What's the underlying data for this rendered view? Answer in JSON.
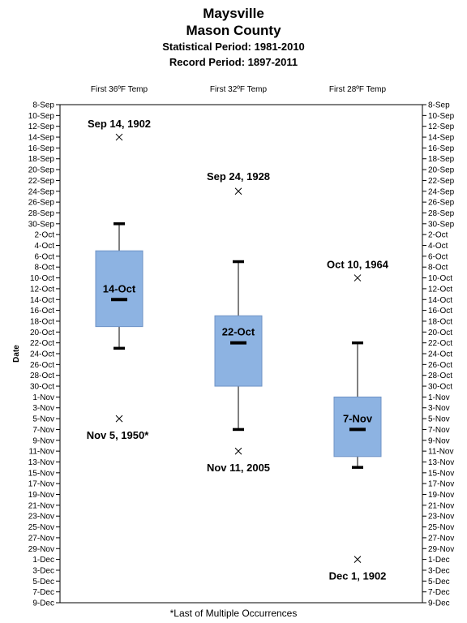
{
  "header": {
    "title_line1": "Maysville",
    "title_line2": "Mason County",
    "statistical_period": "Statistical Period: 1981-2010",
    "record_period": "Record Period: 1897-2011"
  },
  "footnote": "*Last of Multiple Occurrences",
  "colors": {
    "box_fill": "#8db3e2",
    "box_edge": "#6f93c6",
    "median": "#000000",
    "whisker_cap": "#000000"
  },
  "chart_data": {
    "type": "box",
    "ylabel": "Date",
    "y_axis": {
      "start": "8-Sep",
      "end": "9-Dec",
      "reversed": true,
      "grid": false,
      "tick_labels": [
        "8-Sep",
        "10-Sep",
        "12-Sep",
        "14-Sep",
        "16-Sep",
        "18-Sep",
        "20-Sep",
        "22-Sep",
        "24-Sep",
        "26-Sep",
        "28-Sep",
        "30-Sep",
        "2-Oct",
        "4-Oct",
        "6-Oct",
        "8-Oct",
        "10-Oct",
        "12-Oct",
        "14-Oct",
        "16-Oct",
        "18-Oct",
        "20-Oct",
        "22-Oct",
        "24-Oct",
        "26-Oct",
        "28-Oct",
        "30-Oct",
        "1-Nov",
        "3-Nov",
        "5-Nov",
        "7-Nov",
        "9-Nov",
        "11-Nov",
        "13-Nov",
        "15-Nov",
        "17-Nov",
        "19-Nov",
        "21-Nov",
        "23-Nov",
        "25-Nov",
        "27-Nov",
        "29-Nov",
        "1-Dec",
        "3-Dec",
        "5-Dec",
        "7-Dec",
        "9-Dec"
      ]
    },
    "categories": [
      "First 36ºF Temp",
      "First 32ºF Temp",
      "First 28ºF Temp"
    ],
    "series": [
      {
        "whisker_low": "30-Sep",
        "q1": "5-Oct",
        "median": "14-Oct",
        "q3": "19-Oct",
        "whisker_high": "23-Oct",
        "median_label": "14-Oct",
        "record_earliest": {
          "date": "14-Sep",
          "label": "Sep 14, 1902"
        },
        "record_latest": {
          "date": "5-Nov",
          "label": "Nov 5, 1950*"
        }
      },
      {
        "whisker_low": "7-Oct",
        "q1": "17-Oct",
        "median": "22-Oct",
        "q3": "30-Oct",
        "whisker_high": "7-Nov",
        "median_label": "22-Oct",
        "record_earliest": {
          "date": "24-Sep",
          "label": "Sep 24, 1928"
        },
        "record_latest": {
          "date": "11-Nov",
          "label": "Nov 11, 2005"
        }
      },
      {
        "whisker_low": "22-Oct",
        "q1": "1-Nov",
        "median": "7-Nov",
        "q3": "12-Nov",
        "whisker_high": "14-Nov",
        "median_label": "7-Nov",
        "record_earliest": {
          "date": "10-Oct",
          "label": "Oct 10, 1964"
        },
        "record_latest": {
          "date": "1-Dec",
          "label": "Dec 1, 1902"
        }
      }
    ]
  }
}
